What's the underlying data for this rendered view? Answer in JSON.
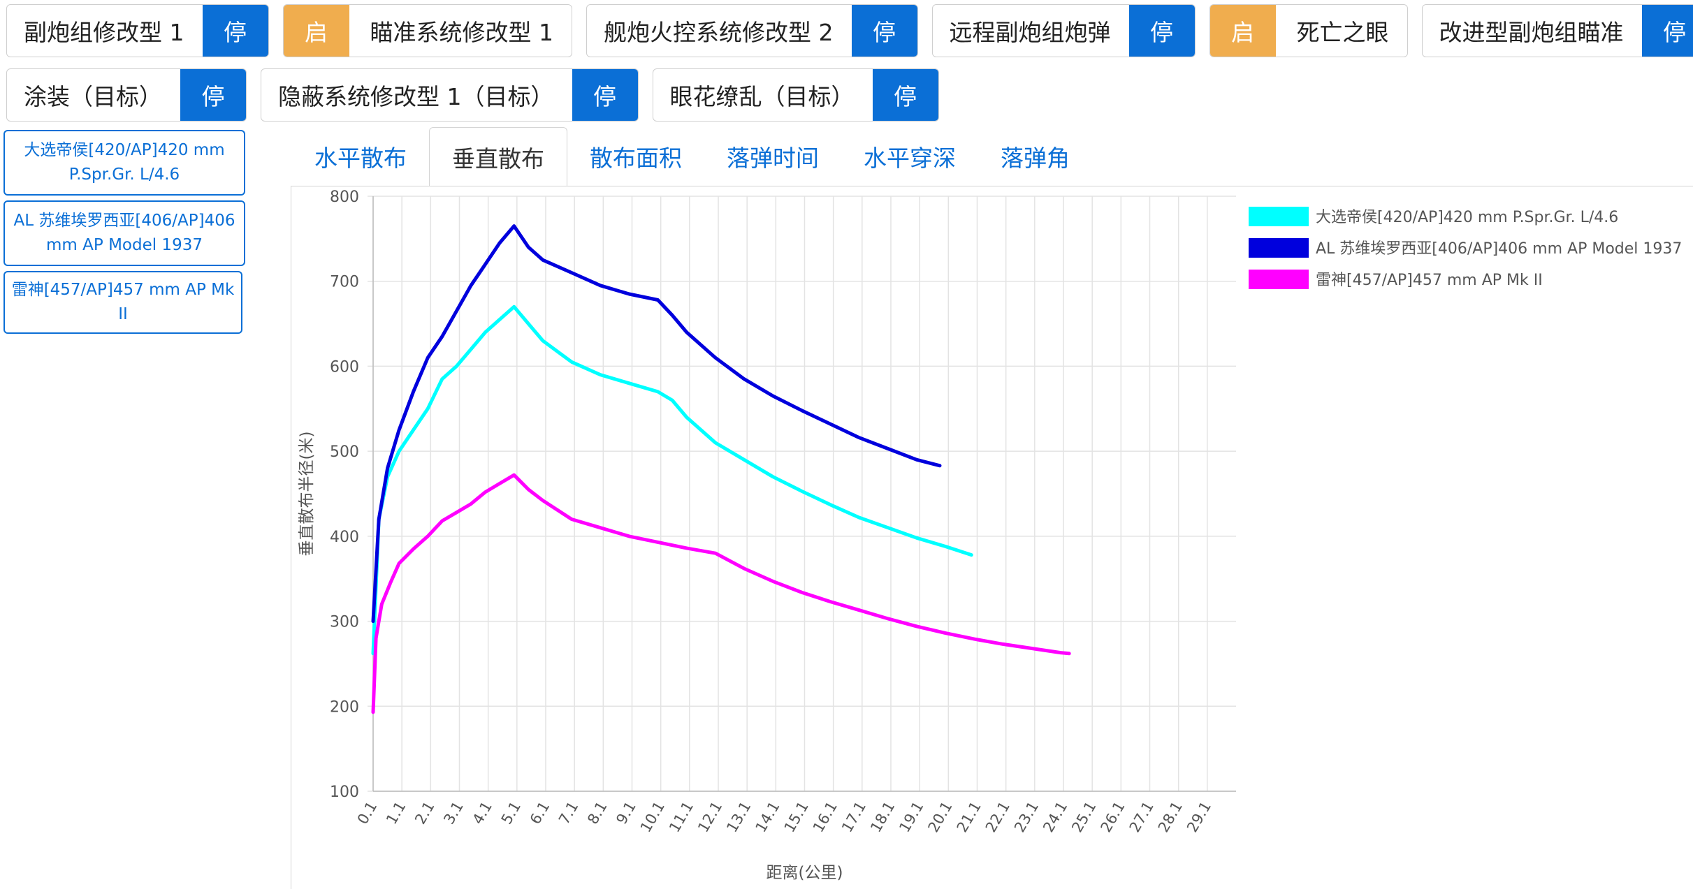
{
  "modules_row1": [
    {
      "label": "副炮组修改型 1",
      "state": "停",
      "state_on": false,
      "toggle_first": false
    },
    {
      "label": "瞄准系统修改型 1",
      "state": "启",
      "state_on": true,
      "toggle_first": true
    },
    {
      "label": "舰炮火控系统修改型 2",
      "state": "停",
      "state_on": false,
      "toggle_first": false
    },
    {
      "label": "远程副炮组炮弹",
      "state": "停",
      "state_on": false,
      "toggle_first": false
    },
    {
      "label": "死亡之眼",
      "state": "启",
      "state_on": true,
      "toggle_first": true
    },
    {
      "label": "改进型副炮组瞄准",
      "state": "停",
      "state_on": false,
      "toggle_first": false
    }
  ],
  "modules_row2": [
    {
      "label": "涂装（目标）",
      "state": "停",
      "state_on": false,
      "toggle_first": false
    },
    {
      "label": "隐蔽系统修改型 1（目标）",
      "state": "停",
      "state_on": false,
      "toggle_first": false
    },
    {
      "label": "眼花缭乱（目标）",
      "state": "停",
      "state_on": false,
      "toggle_first": false
    }
  ],
  "shells": [
    {
      "label": "大选帝侯[420/AP]420 mm P.Spr.Gr. L/4.6"
    },
    {
      "label": "AL 苏维埃罗西亚[406/AP]406 mm AP Model 1937"
    },
    {
      "label": "雷神[457/AP]457 mm AP Mk II"
    }
  ],
  "tabs": [
    {
      "label": "水平散布",
      "active": false
    },
    {
      "label": "垂直散布",
      "active": true
    },
    {
      "label": "散布面积",
      "active": false
    },
    {
      "label": "落弹时间",
      "active": false
    },
    {
      "label": "水平穿深",
      "active": false
    },
    {
      "label": "落弹角",
      "active": false
    }
  ],
  "chart_data": {
    "type": "line",
    "xlabel": "距离(公里)",
    "ylabel": "垂直散布半径(米)",
    "ylim": [
      100,
      800
    ],
    "yticks": [
      100,
      200,
      300,
      400,
      500,
      600,
      700,
      800
    ],
    "xticks": [
      "0.1",
      "1.1",
      "2.1",
      "3.1",
      "4.1",
      "5.1",
      "6.1",
      "7.1",
      "8.1",
      "9.1",
      "10.1",
      "11.1",
      "12.1",
      "13.1",
      "14.1",
      "15.1",
      "16.1",
      "17.1",
      "18.1",
      "19.1",
      "20.1",
      "21.1",
      "22.1",
      "23.1",
      "24.1",
      "25.1",
      "26.1",
      "27.1",
      "28.1",
      "29.1"
    ],
    "xlim": [
      0.1,
      30.1
    ],
    "grid": true,
    "legend_position": "top-right",
    "series": [
      {
        "name": "大选帝侯[420/AP]420 mm P.Spr.Gr. L/4.6",
        "color": "#00ffff",
        "x": [
          0.1,
          0.3,
          0.6,
          1.0,
          1.5,
          2.0,
          2.5,
          3.0,
          3.5,
          4.0,
          4.5,
          5.0,
          5.5,
          6.0,
          7.0,
          8.0,
          9.0,
          10.0,
          10.5,
          11.0,
          12.0,
          13.0,
          14.0,
          15.0,
          16.0,
          17.0,
          18.0,
          19.0,
          20.0,
          20.9
        ],
        "y": [
          262,
          420,
          470,
          500,
          525,
          550,
          585,
          600,
          620,
          640,
          655,
          670,
          650,
          630,
          605,
          590,
          580,
          570,
          560,
          540,
          510,
          490,
          470,
          453,
          437,
          422,
          410,
          398,
          388,
          378
        ]
      },
      {
        "name": "AL 苏维埃罗西亚[406/AP]406 mm AP Model 1937",
        "color": "#0000dd",
        "x": [
          0.1,
          0.3,
          0.6,
          1.0,
          1.5,
          2.0,
          2.5,
          3.0,
          3.5,
          4.0,
          4.5,
          5.0,
          5.5,
          6.0,
          7.0,
          8.0,
          9.0,
          10.0,
          10.5,
          11.0,
          12.0,
          13.0,
          14.0,
          15.0,
          16.0,
          17.0,
          18.0,
          19.0,
          19.8
        ],
        "y": [
          300,
          420,
          480,
          525,
          570,
          610,
          635,
          665,
          695,
          720,
          745,
          765,
          740,
          725,
          710,
          695,
          685,
          678,
          660,
          640,
          610,
          585,
          565,
          548,
          532,
          516,
          503,
          490,
          483
        ]
      },
      {
        "name": "雷神[457/AP]457 mm AP Mk II",
        "color": "#ff00ff",
        "x": [
          0.1,
          0.2,
          0.4,
          0.7,
          1.0,
          1.5,
          2.0,
          2.5,
          3.0,
          3.5,
          4.0,
          4.5,
          5.0,
          5.5,
          6.0,
          7.0,
          8.0,
          9.0,
          10.0,
          11.0,
          12.0,
          13.0,
          14.0,
          15.0,
          16.0,
          17.0,
          18.0,
          19.0,
          20.0,
          21.0,
          22.0,
          23.0,
          24.0,
          24.3
        ],
        "y": [
          193,
          280,
          320,
          345,
          368,
          385,
          400,
          418,
          428,
          438,
          452,
          462,
          472,
          455,
          442,
          420,
          410,
          400,
          393,
          386,
          380,
          362,
          347,
          334,
          323,
          313,
          303,
          294,
          286,
          279,
          273,
          268,
          263,
          262
        ]
      }
    ]
  }
}
